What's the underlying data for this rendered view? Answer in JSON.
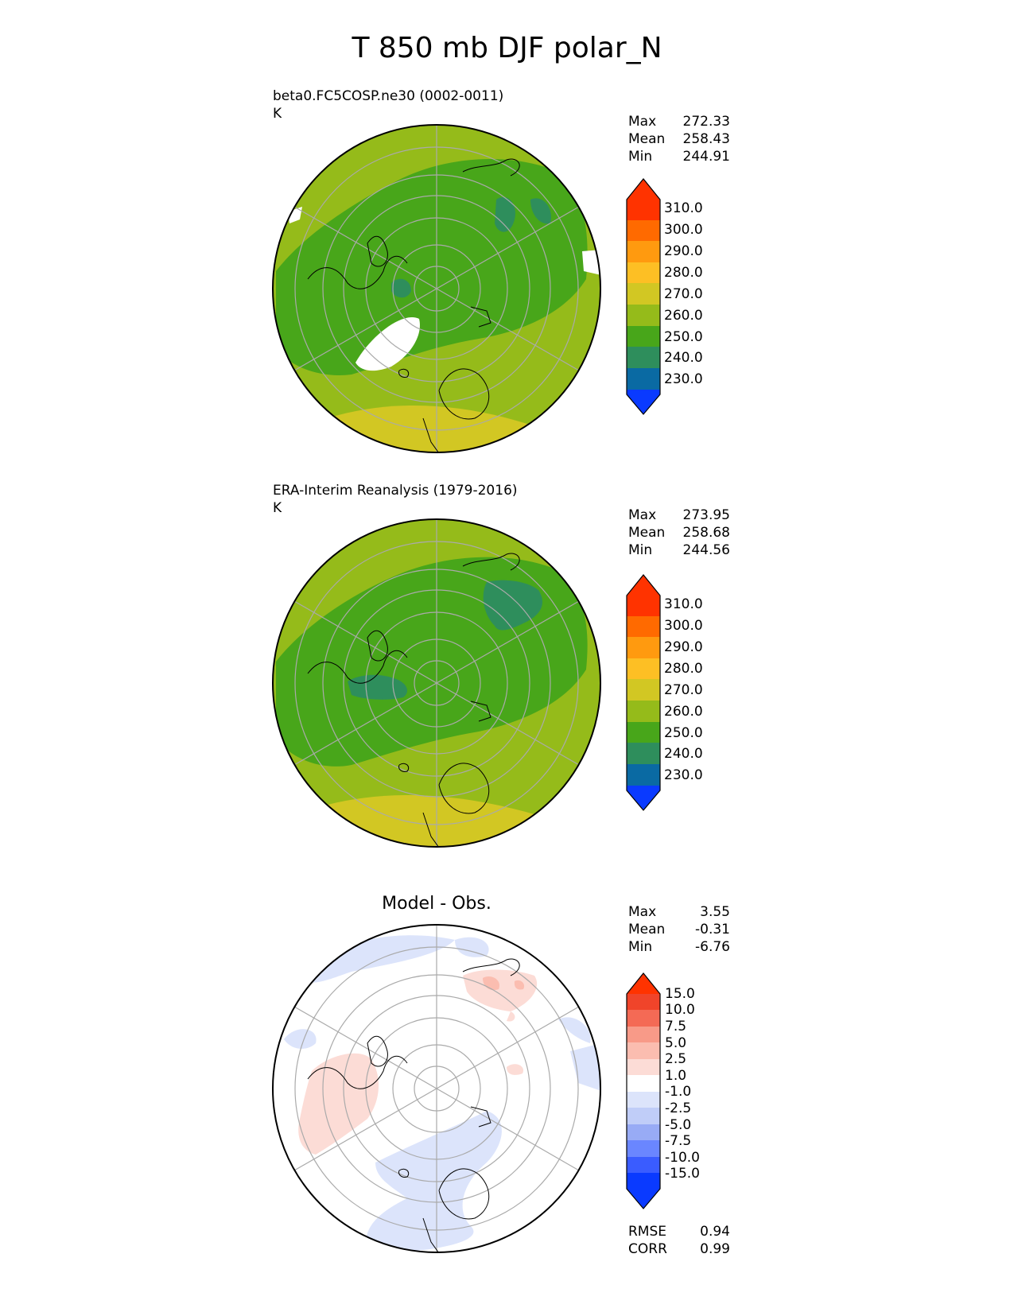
{
  "title": "T 850 mb DJF polar_N",
  "panels": [
    {
      "title": "beta0.FC5COSP.ne30 (0002-0011)",
      "units": "K",
      "stats": [
        {
          "label": "Max",
          "value": "272.33"
        },
        {
          "label": "Mean",
          "value": "258.43"
        },
        {
          "label": "Min",
          "value": "244.91"
        }
      ],
      "colorbar_labels": [
        "310.0",
        "300.0",
        "290.0",
        "280.0",
        "270.0",
        "260.0",
        "250.0",
        "240.0",
        "230.0"
      ]
    },
    {
      "title": "ERA-Interim Reanalysis (1979-2016)",
      "units": "K",
      "stats": [
        {
          "label": "Max",
          "value": "273.95"
        },
        {
          "label": "Mean",
          "value": "258.68"
        },
        {
          "label": "Min",
          "value": "244.56"
        }
      ],
      "colorbar_labels": [
        "310.0",
        "300.0",
        "290.0",
        "280.0",
        "270.0",
        "260.0",
        "250.0",
        "240.0",
        "230.0"
      ]
    },
    {
      "title": "Model - Obs.",
      "stats": [
        {
          "label": "Max",
          "value": "3.55"
        },
        {
          "label": "Mean",
          "value": "-0.31"
        },
        {
          "label": "Min",
          "value": "-6.76"
        }
      ],
      "colorbar_labels": [
        "15.0",
        "10.0",
        "7.5",
        "5.0",
        "2.5",
        "1.0",
        "-1.0",
        "-2.5",
        "-5.0",
        "-7.5",
        "-10.0",
        "-15.0"
      ],
      "metrics": [
        {
          "label": "RMSE",
          "value": "0.94"
        },
        {
          "label": "CORR",
          "value": "0.99"
        }
      ]
    }
  ],
  "colors": {
    "temp_scale": [
      "#0a3aff",
      "#0a6aa3",
      "#2e8e5c",
      "#48a61a",
      "#95bb1a",
      "#d2c723",
      "#fdbf24",
      "#ff9a0f",
      "#ff6a00",
      "#ff3300"
    ],
    "diff_scale": [
      "#0a3aff",
      "#3a5cff",
      "#6a86ff",
      "#98abf5",
      "#c0cdf8",
      "#dce4fb",
      "#ffffff",
      "#fcdcd6",
      "#fbbdb0",
      "#f89a88",
      "#f46a55",
      "#f0442a",
      "#ff3300"
    ],
    "land_outline": "#000000",
    "gridline": "#aaaaaa",
    "missing": "#ffffff"
  }
}
